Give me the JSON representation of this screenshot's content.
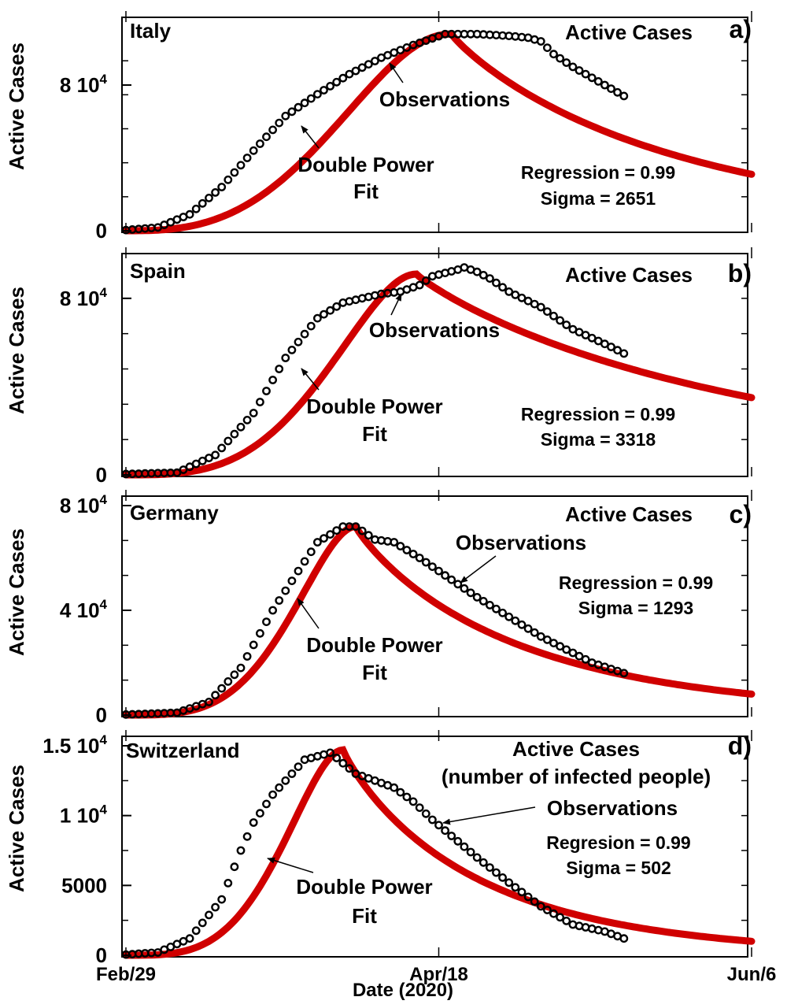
{
  "chart_data": [
    {
      "type": "line",
      "panel": "a)",
      "country": "Italy",
      "title": "Active Cases",
      "ylabel": "Active Cases",
      "ylim": [
        0,
        112000
      ],
      "yticks": [
        {
          "value": 0,
          "label": "0"
        },
        {
          "value": 80000,
          "label": "8 10",
          "exp": "4"
        }
      ],
      "xlim": [
        0,
        98
      ],
      "stats": [
        "Regression = 0.99",
        "Sigma = 2651"
      ],
      "annotations": [
        "Observations",
        "Double Power",
        "Fit"
      ],
      "fit": {
        "name": "Double Power Fit",
        "color": "#d00000",
        "peak_day": 51.0,
        "peak": 108000,
        "rise": 0.4,
        "a": 2.8,
        "b": 2.2,
        "tail_end": 31000
      },
      "observations": {
        "name": "Observations",
        "last_day": 78,
        "anchors": [
          [
            0,
            400
          ],
          [
            5,
            1800
          ],
          [
            10,
            9000
          ],
          [
            15,
            24000
          ],
          [
            20,
            44000
          ],
          [
            25,
            63000
          ],
          [
            30,
            75000
          ],
          [
            35,
            86000
          ],
          [
            40,
            95000
          ],
          [
            45,
            102000
          ],
          [
            50,
            108000
          ],
          [
            55,
            108000
          ],
          [
            60,
            107000
          ],
          [
            63,
            106000
          ],
          [
            65,
            104000
          ],
          [
            67,
            97000
          ],
          [
            70,
            90000
          ],
          [
            73,
            84000
          ],
          [
            76,
            78000
          ],
          [
            78,
            74000
          ]
        ]
      }
    },
    {
      "type": "line",
      "panel": "b)",
      "country": "Spain",
      "title": "Active Cases",
      "ylabel": "Active Cases",
      "ylim": [
        0,
        96000
      ],
      "yticks": [
        {
          "value": 0,
          "label": "0"
        },
        {
          "value": 80000,
          "label": "8 10",
          "exp": "4"
        }
      ],
      "xlim": [
        0,
        98
      ],
      "stats": [
        "Regression = 0.99",
        "Sigma = 3318"
      ],
      "annotations": [
        "Observations",
        "Double Power",
        "Fit"
      ],
      "fit": {
        "name": "Double Power Fit",
        "color": "#d00000",
        "peak_day": 45.5,
        "peak": 91000,
        "rise": 0.45,
        "a": 3.2,
        "b": 2.0,
        "tail_end": 35000
      },
      "observations": {
        "name": "Observations",
        "last_day": 78,
        "anchors": [
          [
            0,
            400
          ],
          [
            8,
            1000
          ],
          [
            14,
            9000
          ],
          [
            20,
            28000
          ],
          [
            25,
            53000
          ],
          [
            30,
            71000
          ],
          [
            34,
            78000
          ],
          [
            40,
            82000
          ],
          [
            43,
            83000
          ],
          [
            46,
            86000
          ],
          [
            48,
            90000
          ],
          [
            52,
            93000
          ],
          [
            53,
            94000
          ],
          [
            55,
            92000
          ],
          [
            57,
            89000
          ],
          [
            60,
            83000
          ],
          [
            65,
            76000
          ],
          [
            70,
            66000
          ],
          [
            73,
            62000
          ],
          [
            76,
            58000
          ],
          [
            78,
            55000
          ]
        ]
      }
    },
    {
      "type": "line",
      "panel": "c)",
      "country": "Germany",
      "title": "Active Cases",
      "ylabel": "Active Cases",
      "ylim": [
        0,
        80000
      ],
      "yticks": [
        {
          "value": 0,
          "label": "0"
        },
        {
          "value": 40000,
          "label": "4 10",
          "exp": "4"
        },
        {
          "value": 80000,
          "label": "8 10",
          "exp": "4"
        }
      ],
      "xlim": [
        0,
        98
      ],
      "stats": [
        "Regression = 0.99",
        "Sigma = 1293"
      ],
      "annotations": [
        "Observations",
        "Double Power",
        "Fit"
      ],
      "fit": {
        "name": "Double Power Fit",
        "color": "#d00000",
        "peak_day": 36.0,
        "peak": 72000,
        "rise": 0.55,
        "a": 3.5,
        "b": 2.0,
        "tail_end": 8000
      },
      "observations": {
        "name": "Observations",
        "last_day": 78,
        "anchors": [
          [
            0,
            200
          ],
          [
            8,
            900
          ],
          [
            13,
            5000
          ],
          [
            18,
            18000
          ],
          [
            23,
            40000
          ],
          [
            27,
            55000
          ],
          [
            30,
            66000
          ],
          [
            34,
            72000
          ],
          [
            36,
            72000
          ],
          [
            39,
            67000
          ],
          [
            42,
            66000
          ],
          [
            46,
            60000
          ],
          [
            55,
            45000
          ],
          [
            65,
            30000
          ],
          [
            73,
            20000
          ],
          [
            78,
            16000
          ]
        ]
      }
    },
    {
      "type": "line",
      "panel": "d)",
      "country": "Switzerland",
      "title": "Active Cases",
      "subtitle": "(number of infected people)",
      "ylabel": "Active Cases",
      "ylim": [
        0,
        15000
      ],
      "yticks": [
        {
          "value": 0,
          "label": "0"
        },
        {
          "value": 5000,
          "label": "5000"
        },
        {
          "value": 10000,
          "label": "1 10",
          "exp": "4"
        },
        {
          "value": 15000,
          "label": "1.5 10",
          "exp": "4"
        }
      ],
      "xlim": [
        0,
        98
      ],
      "xticks": [
        {
          "value": 0,
          "label": "Feb/29"
        },
        {
          "value": 49,
          "label": "Apr/18"
        },
        {
          "value": 98,
          "label": "Jun/6"
        }
      ],
      "xlabel": "Date (2020)",
      "stats": [
        "Regresion = 0.99",
        "Sigma = 502"
      ],
      "annotations": [
        "Observations",
        "Double Power",
        "Fit"
      ],
      "fit": {
        "name": "Double Power Fit",
        "color": "#d00000",
        "peak_day": 34.0,
        "peak": 14700,
        "rise": 0.5,
        "a": 3.5,
        "b": 2.0,
        "tail_end": 1000
      },
      "observations": {
        "name": "Observations",
        "last_day": 78,
        "anchors": [
          [
            0,
            50
          ],
          [
            5,
            200
          ],
          [
            10,
            1200
          ],
          [
            15,
            4000
          ],
          [
            18,
            7500
          ],
          [
            20,
            9500
          ],
          [
            23,
            11500
          ],
          [
            28,
            14000
          ],
          [
            32,
            14500
          ],
          [
            36,
            13000
          ],
          [
            42,
            12000
          ],
          [
            45,
            11000
          ],
          [
            48,
            9700
          ],
          [
            55,
            7000
          ],
          [
            60,
            5200
          ],
          [
            65,
            3500
          ],
          [
            70,
            2200
          ],
          [
            75,
            1700
          ],
          [
            78,
            1200
          ]
        ]
      }
    }
  ]
}
